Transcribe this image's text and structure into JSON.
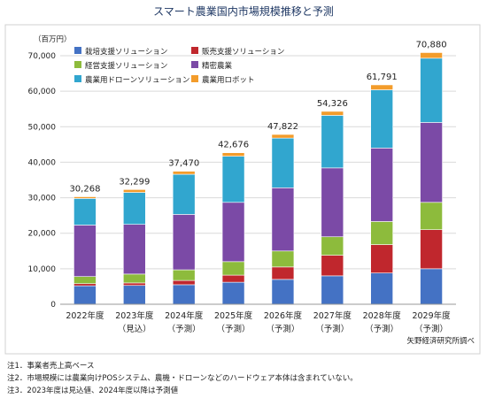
{
  "chart_data": {
    "type": "bar",
    "stacked": true,
    "title": "スマート農業国内市場規模推移と予測",
    "unit_label": "（百万円）",
    "categories": [
      "2022年度",
      "2023年度",
      "2024年度",
      "2025年度",
      "2026年度",
      "2027年度",
      "2028年度",
      "2029年度"
    ],
    "category_sublabels": [
      "",
      "（見込）",
      "（予測）",
      "（予測）",
      "（予測）",
      "（予測）",
      "（予測）",
      "（予測）"
    ],
    "ylim": [
      0,
      70000
    ],
    "yticks": [
      0,
      10000,
      20000,
      30000,
      40000,
      50000,
      60000,
      70000
    ],
    "ytick_labels": [
      "0",
      "10,000",
      "20,000",
      "30,000",
      "40,000",
      "50,000",
      "60,000",
      "70,000"
    ],
    "totals": [
      30268,
      32299,
      37470,
      42676,
      47822,
      54326,
      61791,
      70880
    ],
    "total_labels": [
      "30,268",
      "32,299",
      "37,470",
      "42,676",
      "47,822",
      "54,326",
      "61,791",
      "70,880"
    ],
    "series": [
      {
        "name": "栽培支援ソリューション",
        "color": "#4472c4",
        "values": [
          5200,
          5300,
          5500,
          6200,
          7000,
          8000,
          8800,
          10000
        ]
      },
      {
        "name": "販売支援ソリューション",
        "color": "#c0272d",
        "values": [
          600,
          700,
          1200,
          2000,
          3500,
          5800,
          8000,
          11000
        ]
      },
      {
        "name": "経営支援ソリューション",
        "color": "#8dbb3c",
        "values": [
          2000,
          2500,
          3000,
          3800,
          4500,
          5200,
          6500,
          7700
        ]
      },
      {
        "name": "精密農業",
        "color": "#7b4aa6",
        "values": [
          14500,
          14000,
          15600,
          16700,
          17800,
          19400,
          20700,
          22500
        ]
      },
      {
        "name": "農業用ドローンソリューション",
        "color": "#31a6cf",
        "values": [
          7500,
          9000,
          11300,
          13000,
          14000,
          14800,
          16400,
          18100
        ]
      },
      {
        "name": "農業用ロボット",
        "color": "#f39c2b",
        "values": [
          468,
          799,
          870,
          976,
          1022,
          1126,
          1391,
          1580
        ]
      }
    ],
    "legend_position": "top-left",
    "grid": true
  },
  "notes": [
    "注1．事業者売上高ベース",
    "注2．市場規模には農業向けPOSシステム、農機・ドローンなどのハードウェア本体は含まれていない。",
    "注3．2023年度は見込値、2024年度以降は予測値"
  ],
  "source": "矢野経済研究所調べ"
}
